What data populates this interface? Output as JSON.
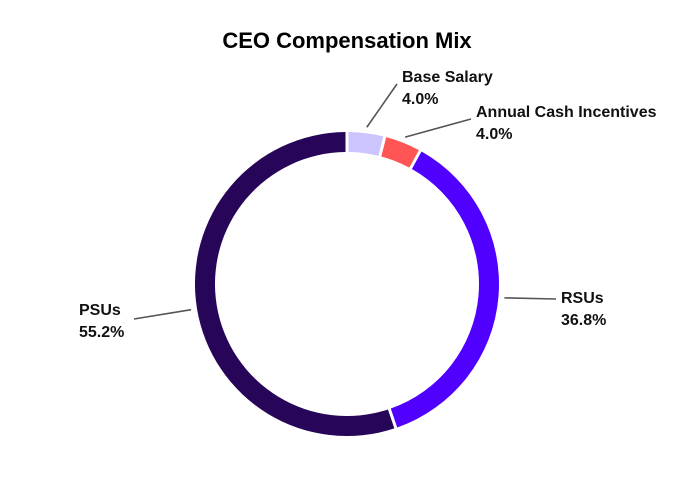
{
  "chart_data": {
    "type": "pie",
    "style": "donut",
    "title": "CEO Compensation Mix",
    "slices": [
      {
        "label": "Base Salary",
        "value": 4.0,
        "value_label": "4.0%",
        "color": "#CCC4FC"
      },
      {
        "label": "Annual Cash Incentives",
        "value": 4.0,
        "value_label": "4.0%",
        "color": "#FF5555"
      },
      {
        "label": "RSUs",
        "value": 36.8,
        "value_label": "36.8%",
        "color": "#5000FF"
      },
      {
        "label": "PSUs",
        "value": 55.2,
        "value_label": "55.2%",
        "color": "#27065A"
      }
    ],
    "start": "top",
    "direction": "clockwise",
    "legend": "none",
    "label_placement": "outside with leader lines"
  }
}
